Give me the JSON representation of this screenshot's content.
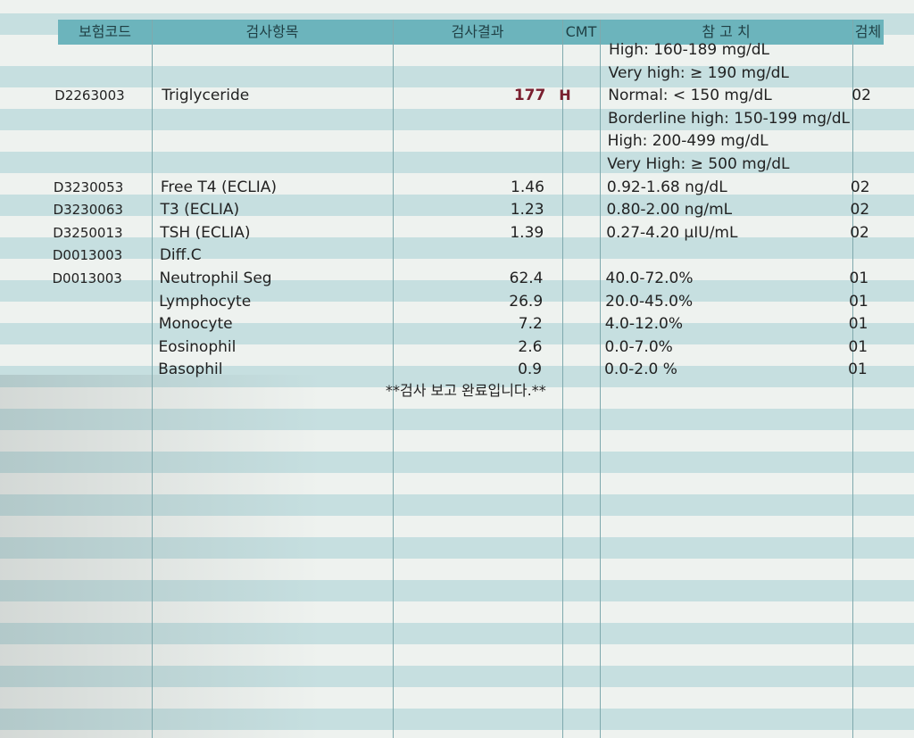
{
  "table": {
    "headers": [
      "보험코드",
      "검사항목",
      "검사결과",
      "CMT",
      "참 고 치",
      "검체"
    ],
    "rows": [
      {
        "reference": "High: 160-189 mg/dL"
      },
      {
        "reference": "Very high: ≥ 190 mg/dL"
      },
      {
        "code": "D2263003",
        "item": "Triglyceride",
        "result": "177",
        "cmt": "H",
        "reference": "Normal: < 150 mg/dL",
        "specimen": "02"
      },
      {
        "reference": "Borderline high: 150-199 mg/dL"
      },
      {
        "reference": "High: 200-499 mg/dL"
      },
      {
        "reference": "Very High: ≥ 500 mg/dL"
      },
      {
        "code": "D3230053",
        "item": "Free T4 (ECLIA)",
        "result": "1.46",
        "reference": "0.92-1.68 ng/dL",
        "specimen": "02"
      },
      {
        "code": "D3230063",
        "item": "T3 (ECLIA)",
        "result": "1.23",
        "reference": "0.80-2.00 ng/mL",
        "specimen": "02"
      },
      {
        "code": "D3250013",
        "item": "TSH (ECLIA)",
        "result": "1.39",
        "reference": "0.27-4.20 µIU/mL",
        "specimen": "02"
      },
      {
        "code": "D0013003",
        "item": "Diff.C"
      },
      {
        "code": "D0013003",
        "item": "Neutrophil Seg",
        "result": "62.4",
        "reference": "40.0-72.0%",
        "specimen": "01"
      },
      {
        "item": "Lymphocyte",
        "result": "26.9",
        "reference": "20.0-45.0%",
        "specimen": "01"
      },
      {
        "item": "Monocyte",
        "result": "7.2",
        "reference": "4.0-12.0%",
        "specimen": "01"
      },
      {
        "item": "Eosinophil",
        "result": "2.6",
        "reference": "0.0-7.0%",
        "specimen": "01"
      },
      {
        "item": "Basophil",
        "result": "0.9",
        "reference": "0.0-2.0 %",
        "specimen": "01"
      }
    ],
    "footer": "**검사  보고  완료입니다.**"
  }
}
